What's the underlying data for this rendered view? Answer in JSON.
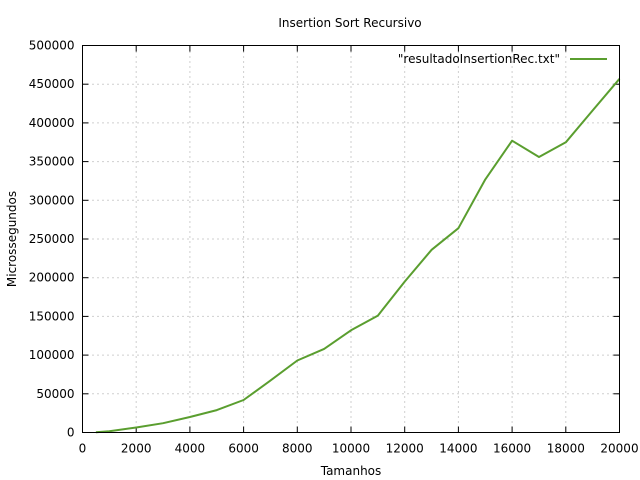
{
  "chart_data": {
    "type": "line",
    "title": "Insertion Sort Recursivo",
    "xlabel": "Tamanhos",
    "ylabel": "Microssegundos",
    "xlim": [
      0,
      20000
    ],
    "ylim": [
      0,
      500000
    ],
    "x_ticks": [
      0,
      2000,
      4000,
      6000,
      8000,
      10000,
      12000,
      14000,
      16000,
      18000,
      20000
    ],
    "y_ticks": [
      0,
      50000,
      100000,
      150000,
      200000,
      250000,
      300000,
      350000,
      400000,
      450000,
      500000
    ],
    "grid": true,
    "legend_position": "top-right",
    "series": [
      {
        "name": "\"resultadoInsertionRec.txt\"",
        "color": "#5a9e2f",
        "x": [
          500,
          1000,
          2000,
          3000,
          4000,
          5000,
          6000,
          7000,
          8000,
          9000,
          10000,
          11000,
          12000,
          13000,
          14000,
          15000,
          16000,
          17000,
          18000,
          19000,
          20000
        ],
        "y": [
          300,
          1500,
          6500,
          12000,
          20000,
          29000,
          42000,
          67000,
          93000,
          108000,
          132000,
          151000,
          195000,
          236000,
          264000,
          327000,
          377000,
          356000,
          375000,
          416000,
          457000
        ]
      }
    ]
  }
}
